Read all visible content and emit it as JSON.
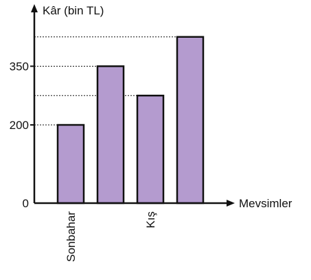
{
  "chart_data": {
    "type": "bar",
    "ylabel": "Kâr (bin TL)",
    "xlabel": "Mevsimler",
    "categories": [
      "Sonbahar",
      "",
      "Kış",
      ""
    ],
    "values": [
      200,
      350,
      275,
      425
    ],
    "yticks": [
      {
        "value": 0,
        "label": "0"
      },
      {
        "value": 200,
        "label": "200"
      },
      {
        "value": 350,
        "label": "350"
      }
    ],
    "ylim": [
      0,
      470
    ],
    "bar_color": "#b49bcf",
    "bar_edge_color": "#111111",
    "grid": false,
    "reference_lines": "dashed lines from each bar top to the y-axis"
  }
}
